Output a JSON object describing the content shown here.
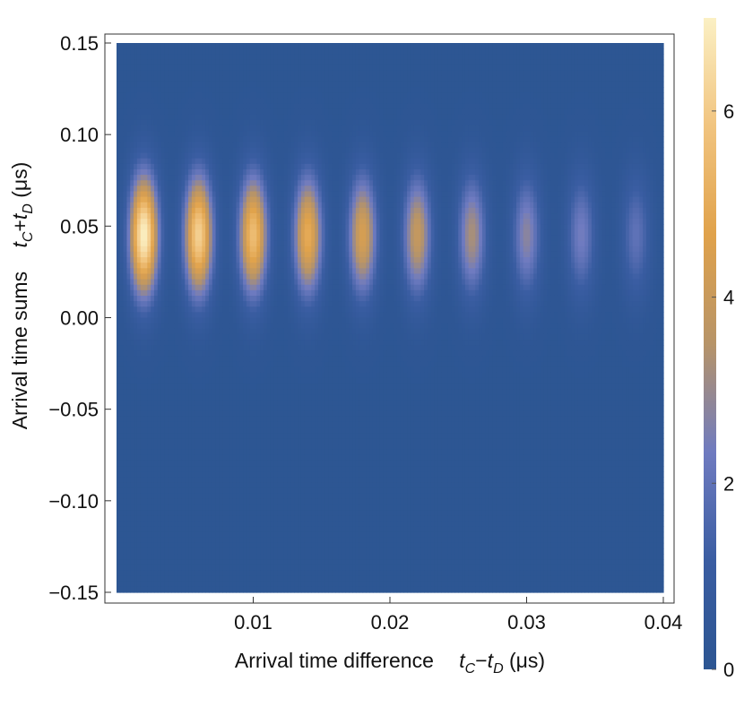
{
  "chart_data": {
    "type": "heatmap",
    "title": "",
    "xlabel": {
      "text": "Arrival time difference",
      "expr": [
        {
          "t": "t",
          "sub": "C"
        },
        {
          "t": "−"
        },
        {
          "t": "t",
          "sub": "D"
        },
        {
          "t": " (μs)"
        }
      ]
    },
    "ylabel": {
      "text": "Arrival time sums",
      "expr": [
        {
          "t": "t",
          "sub": "C"
        },
        {
          "t": "+"
        },
        {
          "t": "t",
          "sub": "D"
        },
        {
          "t": " (μs)"
        }
      ]
    },
    "xlim": [
      0.0,
      0.04
    ],
    "ylim": [
      -0.15,
      0.15
    ],
    "x_ticks": [
      {
        "value": 0.01,
        "label": "0.01"
      },
      {
        "value": 0.02,
        "label": "0.02"
      },
      {
        "value": 0.03,
        "label": "0.03"
      },
      {
        "value": 0.04,
        "label": "0.04"
      }
    ],
    "y_ticks": [
      {
        "value": 0.15,
        "label": "0.15"
      },
      {
        "value": 0.1,
        "label": "0.10"
      },
      {
        "value": 0.05,
        "label": "0.05"
      },
      {
        "value": 0.0,
        "label": "0.00"
      },
      {
        "value": -0.05,
        "label": "−0.05"
      },
      {
        "value": -0.1,
        "label": "−0.10"
      },
      {
        "value": -0.15,
        "label": "−0.15"
      }
    ],
    "colorbar": {
      "range": [
        0,
        7
      ],
      "ticks": [
        {
          "value": 0,
          "label": "0"
        },
        {
          "value": 2,
          "label": "2"
        },
        {
          "value": 4,
          "label": "4"
        },
        {
          "value": 6,
          "label": "6"
        }
      ],
      "colors": [
        "#2c5592",
        "#3a5da2",
        "#6f7bc0",
        "#b79468",
        "#e0a24b",
        "#f1c47f",
        "#fbf0c4"
      ]
    },
    "pattern": {
      "description_free_values": true,
      "lobe_centers_x": [
        0.002,
        0.006,
        0.01,
        0.014,
        0.018,
        0.022,
        0.026,
        0.03,
        0.034,
        0.038
      ],
      "lobe_peak_values": [
        7.0,
        6.2,
        5.6,
        5.0,
        4.4,
        3.9,
        3.3,
        2.8,
        2.4,
        2.0
      ],
      "lobe_center_y": 0.045,
      "background_value": 0.1
    }
  }
}
